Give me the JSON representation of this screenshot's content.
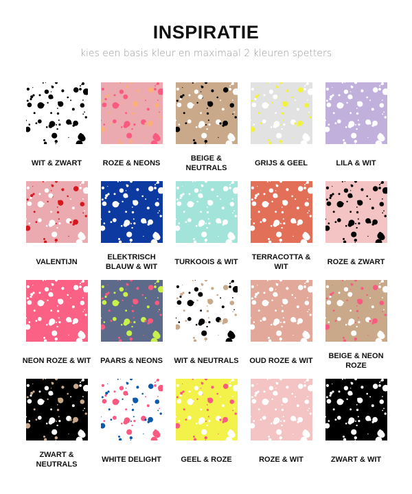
{
  "header": {
    "title": "INSPIRATIE",
    "subtitle": "kies een basis kleur en maximaal 2 kleuren spetters"
  },
  "items": [
    {
      "label": "WIT & ZWART",
      "base": "#ffffff",
      "splatters": [
        "#000000"
      ]
    },
    {
      "label": "ROZE & NEONS",
      "base": "#eba9b0",
      "splatters": [
        "#fb5a80",
        "#fbb07a"
      ]
    },
    {
      "label": "BEIGE & NEUTRALS",
      "base": "#c9a98a",
      "splatters": [
        "#ffffff",
        "#000000"
      ]
    },
    {
      "label": "GRIJS & GEEL",
      "base": "#e2e2e2",
      "splatters": [
        "#ffffff",
        "#f2f23a"
      ]
    },
    {
      "label": "LILA & WIT",
      "base": "#c1b0dc",
      "splatters": [
        "#ffffff"
      ]
    },
    {
      "label": "VALENTIJN",
      "base": "#eba9b0",
      "splatters": [
        "#ffffff",
        "#d8161d"
      ]
    },
    {
      "label": "ELEKTRISCH BLAUW & WIT",
      "base": "#0c3aa0",
      "splatters": [
        "#ffffff"
      ]
    },
    {
      "label": "TURKOOIS & WIT",
      "base": "#a2e3da",
      "splatters": [
        "#ffffff"
      ]
    },
    {
      "label": "TERRACOTTA & WIT",
      "base": "#e27059",
      "splatters": [
        "#ffffff"
      ]
    },
    {
      "label": "ROZE & ZWART",
      "base": "#f4c3c3",
      "splatters": [
        "#000000"
      ]
    },
    {
      "label": "NEON ROZE & WIT",
      "base": "#fb6185",
      "splatters": [
        "#ffffff"
      ]
    },
    {
      "label": "PAARS & NEONS",
      "base": "#5e6a8a",
      "splatters": [
        "#c7f24c",
        "#fb5a80"
      ]
    },
    {
      "label": "WIT & NEUTRALS",
      "base": "#ffffff",
      "splatters": [
        "#000000",
        "#c9a98a"
      ]
    },
    {
      "label": "OUD ROZE & WIT",
      "base": "#e2a899",
      "splatters": [
        "#ffffff"
      ]
    },
    {
      "label": "BEIGE & NEON ROZE",
      "base": "#c9a98a",
      "splatters": [
        "#ffffff",
        "#fb5a80"
      ]
    },
    {
      "label": "ZWART & NEUTRALS",
      "base": "#000000",
      "splatters": [
        "#ffffff",
        "#c9a98a"
      ]
    },
    {
      "label": "WHITE DELIGHT",
      "base": "#ffffff",
      "splatters": [
        "#fb5a80",
        "#0d5aa8"
      ]
    },
    {
      "label": "GEEL & ROZE",
      "base": "#f2f24a",
      "splatters": [
        "#ffffff",
        "#fb5a80"
      ]
    },
    {
      "label": "ROZE & WIT",
      "base": "#f4c3c3",
      "splatters": [
        "#ffffff"
      ]
    },
    {
      "label": "ZWART & WIT",
      "base": "#000000",
      "splatters": [
        "#ffffff"
      ]
    }
  ]
}
